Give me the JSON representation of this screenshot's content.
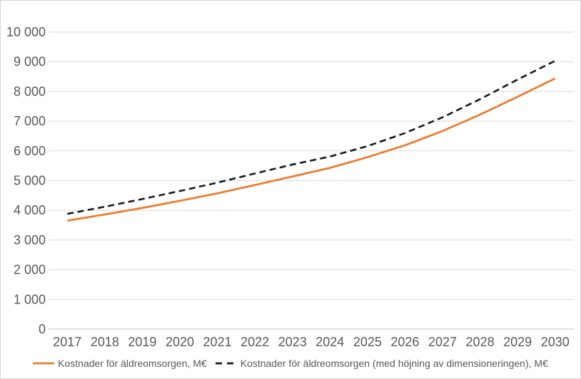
{
  "chart": {
    "background_color": "#FFFFFF",
    "frame_border_color": "#D6D6D6",
    "gridline_color": "#D9D9D9",
    "axis_line_color": "#BFBFBF",
    "tick_label_color": "#595959",
    "legend_text_color": "#595959"
  },
  "chart_data": {
    "type": "line",
    "title": "",
    "xlabel": "",
    "ylabel": "",
    "grid": "horizontal",
    "legend_position": "bottom",
    "ylim": [
      0,
      10000
    ],
    "y_tick_interval": 1000,
    "y_tick_values": [
      0,
      1000,
      2000,
      3000,
      4000,
      5000,
      6000,
      7000,
      8000,
      9000,
      10000
    ],
    "y_tick_labels": [
      "0",
      "1 000",
      "2 000",
      "3 000",
      "4 000",
      "5 000",
      "6 000",
      "7 000",
      "8 000",
      "9 000",
      "10 000"
    ],
    "categories": [
      "2017",
      "2018",
      "2019",
      "2020",
      "2021",
      "2022",
      "2023",
      "2024",
      "2025",
      "2026",
      "2027",
      "2028",
      "2029",
      "2030"
    ],
    "series": [
      {
        "name": "Kostnader för äldreomsorgen, M€",
        "color": "#ED7D31",
        "style": "solid",
        "values": [
          3650,
          3860,
          4080,
          4320,
          4570,
          4850,
          5140,
          5430,
          5790,
          6190,
          6670,
          7220,
          7820,
          8440
        ]
      },
      {
        "name": "Kostnader för äldreomsorgen (med höjning av dimensioneringen),  M€",
        "color": "#1A1A1A",
        "style": "dashed",
        "values": [
          3880,
          4120,
          4380,
          4650,
          4930,
          5240,
          5540,
          5810,
          6160,
          6600,
          7130,
          7740,
          8400,
          9030
        ]
      }
    ]
  }
}
